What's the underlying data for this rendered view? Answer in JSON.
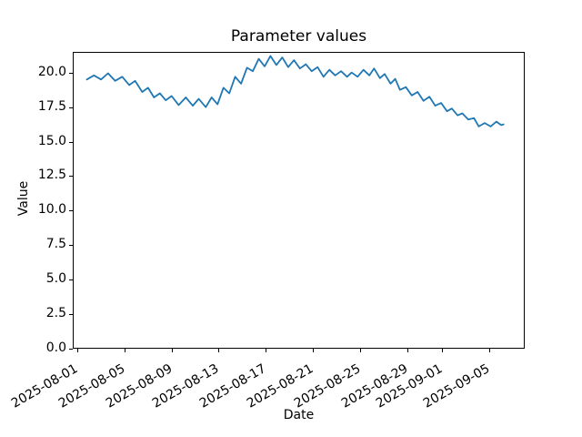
{
  "chart_data": {
    "type": "line",
    "title": "Parameter values",
    "xlabel": "Date",
    "ylabel": "Value",
    "grid": false,
    "legend": null,
    "line_color": "#1f77b4",
    "axis_color": "#000000",
    "background_color": "#ffffff",
    "x_unit": "days after 2025-08-01",
    "xlim_days": [
      -0.4,
      38.0
    ],
    "ylim": [
      0,
      21.5
    ],
    "y_ticks": [
      {
        "value": 0.0,
        "label": "0.0"
      },
      {
        "value": 2.5,
        "label": "2.5"
      },
      {
        "value": 5.0,
        "label": "5.0"
      },
      {
        "value": 7.5,
        "label": "7.5"
      },
      {
        "value": 10.0,
        "label": "10.0"
      },
      {
        "value": 12.5,
        "label": "12.5"
      },
      {
        "value": 15.0,
        "label": "15.0"
      },
      {
        "value": 17.5,
        "label": "17.5"
      },
      {
        "value": 20.0,
        "label": "20.0"
      }
    ],
    "x_ticks": [
      {
        "day": 0,
        "label": "2025-08-01"
      },
      {
        "day": 4,
        "label": "2025-08-05"
      },
      {
        "day": 8,
        "label": "2025-08-09"
      },
      {
        "day": 12,
        "label": "2025-08-13"
      },
      {
        "day": 16,
        "label": "2025-08-17"
      },
      {
        "day": 20,
        "label": "2025-08-21"
      },
      {
        "day": 24,
        "label": "2025-08-25"
      },
      {
        "day": 28,
        "label": "2025-08-29"
      },
      {
        "day": 31,
        "label": "2025-09-01"
      },
      {
        "day": 35,
        "label": "2025-09-05"
      }
    ],
    "series": [
      {
        "name": "parameter-values",
        "color": "#1f77b4",
        "points": [
          [
            0.8,
            19.5
          ],
          [
            1.4,
            19.8
          ],
          [
            2.0,
            19.5
          ],
          [
            2.6,
            19.95
          ],
          [
            3.2,
            19.4
          ],
          [
            3.8,
            19.7
          ],
          [
            4.4,
            19.1
          ],
          [
            4.9,
            19.4
          ],
          [
            5.5,
            18.6
          ],
          [
            6.0,
            18.9
          ],
          [
            6.5,
            18.2
          ],
          [
            7.0,
            18.5
          ],
          [
            7.5,
            18.0
          ],
          [
            8.0,
            18.3
          ],
          [
            8.6,
            17.65
          ],
          [
            9.2,
            18.2
          ],
          [
            9.8,
            17.6
          ],
          [
            10.3,
            18.1
          ],
          [
            10.9,
            17.5
          ],
          [
            11.4,
            18.2
          ],
          [
            11.9,
            17.7
          ],
          [
            12.4,
            18.9
          ],
          [
            12.9,
            18.5
          ],
          [
            13.4,
            19.7
          ],
          [
            13.9,
            19.2
          ],
          [
            14.4,
            20.35
          ],
          [
            14.9,
            20.1
          ],
          [
            15.4,
            21.0
          ],
          [
            15.9,
            20.45
          ],
          [
            16.4,
            21.2
          ],
          [
            16.9,
            20.55
          ],
          [
            17.4,
            21.1
          ],
          [
            17.9,
            20.4
          ],
          [
            18.4,
            20.9
          ],
          [
            18.9,
            20.3
          ],
          [
            19.4,
            20.6
          ],
          [
            19.9,
            20.1
          ],
          [
            20.4,
            20.4
          ],
          [
            20.9,
            19.7
          ],
          [
            21.4,
            20.2
          ],
          [
            21.9,
            19.8
          ],
          [
            22.4,
            20.1
          ],
          [
            22.9,
            19.7
          ],
          [
            23.3,
            20.0
          ],
          [
            23.8,
            19.7
          ],
          [
            24.3,
            20.2
          ],
          [
            24.8,
            19.8
          ],
          [
            25.2,
            20.3
          ],
          [
            25.7,
            19.6
          ],
          [
            26.1,
            19.9
          ],
          [
            26.6,
            19.2
          ],
          [
            27.0,
            19.55
          ],
          [
            27.4,
            18.75
          ],
          [
            27.9,
            18.95
          ],
          [
            28.4,
            18.35
          ],
          [
            28.9,
            18.6
          ],
          [
            29.4,
            17.95
          ],
          [
            29.9,
            18.25
          ],
          [
            30.4,
            17.6
          ],
          [
            30.9,
            17.8
          ],
          [
            31.4,
            17.2
          ],
          [
            31.8,
            17.4
          ],
          [
            32.3,
            16.9
          ],
          [
            32.7,
            17.05
          ],
          [
            33.2,
            16.6
          ],
          [
            33.7,
            16.7
          ],
          [
            34.1,
            16.1
          ],
          [
            34.6,
            16.35
          ],
          [
            35.1,
            16.1
          ],
          [
            35.6,
            16.45
          ],
          [
            36.0,
            16.2
          ],
          [
            36.2,
            16.25
          ]
        ]
      }
    ]
  }
}
